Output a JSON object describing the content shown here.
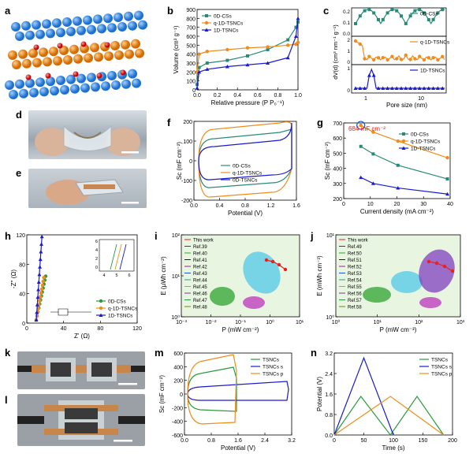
{
  "panels": {
    "a": "a",
    "b": "b",
    "c": "c",
    "d": "d",
    "e": "e",
    "f": "f",
    "g": "g",
    "h": "h",
    "i": "i",
    "j": "j",
    "k": "k",
    "l": "l",
    "m": "m",
    "n": "n"
  },
  "colors": {
    "teal": "#2a8a7a",
    "orange": "#f08c1c",
    "blue": "#1a1ad0",
    "red": "#e82020",
    "green": "#2a9a3a"
  },
  "b": {
    "ylabel": "Volume (cm³ g⁻¹)",
    "xlabel": "Relative pressure (P P₀⁻¹)",
    "yticks": [
      "0",
      "100",
      "200",
      "300",
      "400",
      "500",
      "600",
      "700",
      "800",
      "900"
    ],
    "xticks": [
      "0.0",
      "0.2",
      "0.4",
      "0.6",
      "0.8",
      "1.0"
    ],
    "legend": [
      "0D-CSs",
      "q-1D-TSNCs",
      "1D-TSNCs"
    ]
  },
  "c": {
    "ylabel": "dV(d) (cm³ nm⁻¹ g⁻¹)",
    "xlabel": "Pore size (nm)",
    "xticks": [
      "1",
      "10"
    ],
    "legend": [
      "0D-CSs",
      "q-1D-TSNCs",
      "1D-TSNCs"
    ],
    "yticks_top": [
      "0.2",
      "0.1",
      "0.0"
    ],
    "yticks_mid": [
      "2",
      "1",
      "0"
    ],
    "yticks_bot": [
      "1",
      "0"
    ]
  },
  "f": {
    "ylabel": "Sc (mF cm⁻²)",
    "xlabel": "Potential (V)",
    "yticks": [
      "200",
      "100",
      "0",
      "-100",
      "-200"
    ],
    "xticks": [
      "0.0",
      "0.4",
      "0.8",
      "1.2",
      "1.6"
    ],
    "legend": [
      "0D-CSs",
      "q-1D-TSNCs",
      "0D-TSNCs"
    ]
  },
  "g": {
    "ylabel": "Sc (mF cm⁻²)",
    "xlabel": "Current density (mA cm⁻²)",
    "yticks": [
      "700",
      "600",
      "500",
      "400",
      "300",
      "200"
    ],
    "xticks": [
      "0",
      "10",
      "20",
      "30",
      "40"
    ],
    "annotation": "684 mF cm⁻²",
    "legend": [
      "0D-CSs",
      "q-1D-TSNCs",
      "1D-TSNCs"
    ]
  },
  "h": {
    "ylabel": "-Z'' (Ω)",
    "xlabel": "Z' (Ω)",
    "yticks": [
      "120",
      "80",
      "40",
      "0"
    ],
    "xticks": [
      "0",
      "40",
      "80",
      "120"
    ],
    "inset_xticks": [
      "4",
      "5",
      "6"
    ],
    "inset_yticks": [
      "6",
      "4",
      "2",
      "0"
    ],
    "legend": [
      "0D-CSs",
      "q-1D-TSNCs",
      "1D-TSNCs"
    ]
  },
  "i": {
    "ylabel": "E (μWh cm⁻²)",
    "xlabel": "P (mW cm⁻²)",
    "yticks": [
      "10²",
      "10¹",
      "10⁰"
    ],
    "xticks": [
      "10⁻³",
      "10⁻²",
      "10⁻¹",
      "10⁰",
      "10¹"
    ],
    "legend": [
      "This work",
      "Ref.39",
      "Ref.40",
      "Ref.41",
      "Ref.42",
      "Ref.43",
      "Ref.44",
      "Ref.45",
      "Ref.46",
      "Ref.47",
      "Ref.48"
    ]
  },
  "j": {
    "ylabel": "E (mWh cm⁻³)",
    "xlabel": "P (mW cm⁻³)",
    "yticks": [
      "10¹",
      "10⁰"
    ],
    "xticks": [
      "10⁰",
      "10¹",
      "10²",
      "10³"
    ],
    "legend": [
      "This work",
      "Ref.49",
      "Ref.50",
      "Ref.51",
      "Ref.52",
      "Ref.53",
      "Ref.54",
      "Ref.55",
      "Ref.56",
      "Ref.57",
      "Ref.58"
    ]
  },
  "m": {
    "ylabel": "Sc (mF cm⁻²)",
    "xlabel": "Potential (V)",
    "yticks": [
      "600",
      "400",
      "200",
      "0",
      "-200",
      "-400",
      "-600"
    ],
    "xticks": [
      "0.0",
      "0.8",
      "1.6",
      "2.4",
      "3.2"
    ],
    "legend": [
      "TSNCs",
      "TSNCs s",
      "TSNCs p"
    ]
  },
  "n": {
    "ylabel": "Potential (V)",
    "xlabel": "Time (s)",
    "yticks": [
      "3.2",
      "2.4",
      "1.6",
      "0.8",
      "0.0"
    ],
    "xticks": [
      "0",
      "50",
      "100",
      "150",
      "200"
    ],
    "legend": [
      "TSNCs",
      "TSNCs s",
      "TSNCs p"
    ]
  },
  "chart_data": [
    {
      "type": "line",
      "panel": "b",
      "xlabel": "Relative pressure (P P₀⁻¹)",
      "ylabel": "Volume (cm³ g⁻¹)",
      "ylim": [
        0,
        900
      ],
      "series": [
        {
          "name": "0D-CSs",
          "x": [
            0,
            0.02,
            0.1,
            0.3,
            0.5,
            0.7,
            0.9,
            0.98,
            1.0
          ],
          "y": [
            60,
            250,
            300,
            330,
            380,
            450,
            560,
            700,
            760
          ]
        },
        {
          "name": "q-1D-TSNCs",
          "x": [
            0,
            0.02,
            0.1,
            0.3,
            0.5,
            0.7,
            0.9,
            0.98,
            1.0
          ],
          "y": [
            200,
            400,
            430,
            450,
            470,
            480,
            500,
            510,
            530
          ]
        },
        {
          "name": "1D-TSNCs",
          "x": [
            0,
            0.02,
            0.1,
            0.3,
            0.5,
            0.7,
            0.9,
            0.98,
            1.0
          ],
          "y": [
            20,
            200,
            230,
            260,
            280,
            300,
            360,
            600,
            800
          ]
        }
      ]
    },
    {
      "type": "bar-line",
      "panel": "g",
      "xlabel": "Current density (mA cm⁻²)",
      "ylabel": "Sc (mF cm⁻²)",
      "series": [
        {
          "name": "0D-CSs",
          "x": [
            5,
            10,
            20,
            40
          ],
          "y": [
            545,
            495,
            420,
            330
          ]
        },
        {
          "name": "q-1D-TSNCs",
          "x": [
            5,
            10,
            20,
            40
          ],
          "y": [
            684,
            640,
            580,
            470
          ]
        },
        {
          "name": "1D-TSNCs",
          "x": [
            5,
            10,
            20,
            40
          ],
          "y": [
            340,
            300,
            270,
            230
          ]
        }
      ]
    },
    {
      "type": "line",
      "panel": "n",
      "xlabel": "Time (s)",
      "ylabel": "Potential (V)",
      "series": [
        {
          "name": "TSNCs",
          "x": [
            0,
            45,
            95,
            140,
            185
          ],
          "y": [
            0,
            1.6,
            0,
            1.6,
            0
          ]
        },
        {
          "name": "TSNCs s",
          "x": [
            0,
            50,
            100
          ],
          "y": [
            0,
            3.2,
            0
          ]
        },
        {
          "name": "TSNCs p",
          "x": [
            0,
            95,
            185
          ],
          "y": [
            0,
            1.6,
            0
          ]
        }
      ]
    }
  ]
}
